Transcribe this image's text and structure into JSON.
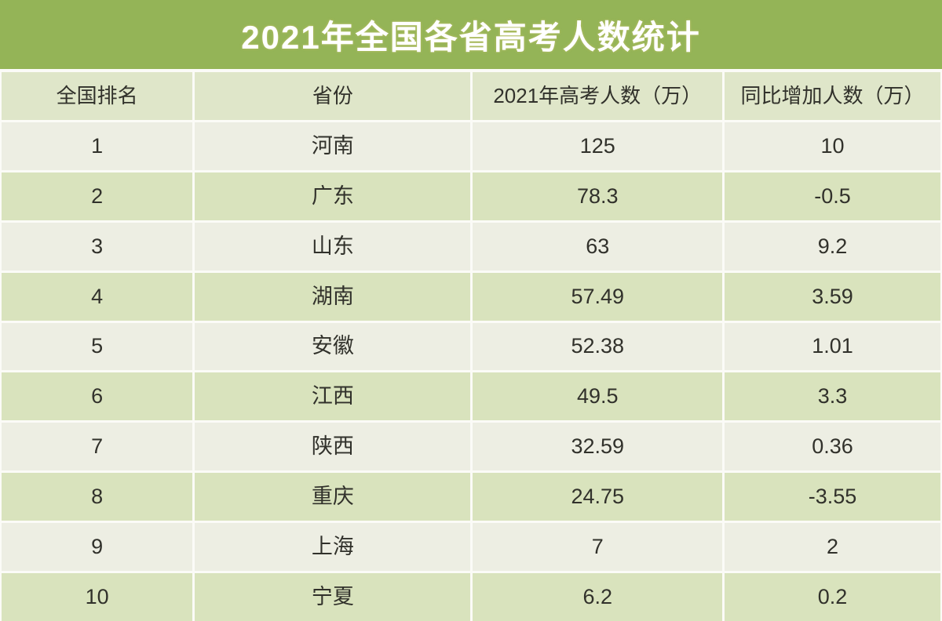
{
  "title": "2021年全国各省高考人数统计",
  "table": {
    "columns": [
      "全国排名",
      "省份",
      "2021年高考人数（万）",
      "同比增加人数（万）"
    ],
    "rows": [
      [
        "1",
        "河南",
        "125",
        "10"
      ],
      [
        "2",
        "广东",
        "78.3",
        "-0.5"
      ],
      [
        "3",
        "山东",
        "63",
        "9.2"
      ],
      [
        "4",
        "湖南",
        "57.49",
        "3.59"
      ],
      [
        "5",
        "安徽",
        "52.38",
        "1.01"
      ],
      [
        "6",
        "江西",
        "49.5",
        "3.3"
      ],
      [
        "7",
        "陕西",
        "32.59",
        "0.36"
      ],
      [
        "8",
        "重庆",
        "24.75",
        "-3.55"
      ],
      [
        "9",
        "上海",
        "7",
        "2"
      ],
      [
        "10",
        "宁夏",
        "6.2",
        "0.2"
      ]
    ]
  },
  "chart_data": {
    "type": "table",
    "title": "2021年全国各省高考人数统计",
    "columns": [
      "全国排名",
      "省份",
      "2021年高考人数（万）",
      "同比增加人数（万）"
    ],
    "rows": [
      [
        1,
        "河南",
        125,
        10
      ],
      [
        2,
        "广东",
        78.3,
        -0.5
      ],
      [
        3,
        "山东",
        63,
        9.2
      ],
      [
        4,
        "湖南",
        57.49,
        3.59
      ],
      [
        5,
        "安徽",
        52.38,
        1.01
      ],
      [
        6,
        "江西",
        49.5,
        3.3
      ],
      [
        7,
        "陕西",
        32.59,
        0.36
      ],
      [
        8,
        "重庆",
        24.75,
        -3.55
      ],
      [
        9,
        "上海",
        7,
        2
      ],
      [
        10,
        "宁夏",
        6.2,
        0.2
      ]
    ]
  },
  "colors": {
    "title_bg": "#94b457",
    "header_bg": "#dfe6c9",
    "row_light": "#edeee3",
    "row_green": "#d9e3bd",
    "grid_line": "#fbfbf7",
    "text": "#31312b",
    "title_text": "#ffffff"
  }
}
